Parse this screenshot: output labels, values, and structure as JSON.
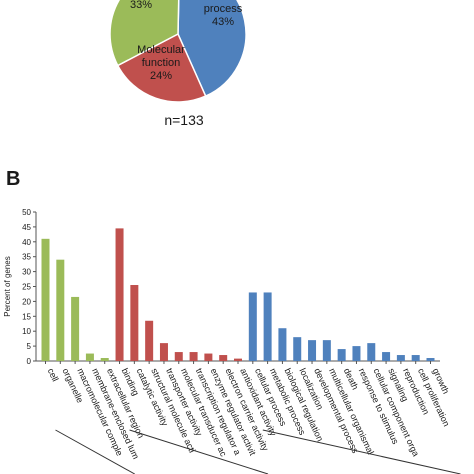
{
  "panels": {
    "b_label": "B"
  },
  "colors": {
    "cellular_component": "#9bbb59",
    "molecular_function": "#c0504d",
    "biological_process": "#4f81bd"
  },
  "pie": {
    "n_label": "n=133",
    "slices": [
      {
        "key": "cellular_component",
        "pct_label": "33%",
        "name_lines": [],
        "value": 33
      },
      {
        "key": "biological_process",
        "pct_label": "43%",
        "name_lines": [
          "process"
        ],
        "value": 43
      },
      {
        "key": "molecular_function",
        "pct_label": "24%",
        "name_lines": [
          "Molecular",
          "function"
        ],
        "value": 24
      }
    ]
  },
  "chart_data": {
    "type": "bar",
    "ylabel": "Percent of genes",
    "ylim": [
      0,
      50
    ],
    "yticks": [
      0,
      5,
      10,
      15,
      20,
      25,
      30,
      35,
      40,
      45,
      50
    ],
    "grid": false,
    "categories": [
      {
        "label": "cell",
        "value": 41,
        "group": "cellular_component"
      },
      {
        "label": "organelle",
        "value": 34,
        "group": "cellular_component"
      },
      {
        "label": "macromolecular comple",
        "value": 21.5,
        "group": "cellular_component"
      },
      {
        "label": "membrane-enclosed lum",
        "value": 2.5,
        "group": "cellular_component"
      },
      {
        "label": "extracellular region",
        "value": 1,
        "group": "cellular_component"
      },
      {
        "label": "binding",
        "value": 44.5,
        "group": "molecular_function"
      },
      {
        "label": "catalytic activity",
        "value": 25.5,
        "group": "molecular_function"
      },
      {
        "label": "structural molecule acti",
        "value": 13.5,
        "group": "molecular_function"
      },
      {
        "label": "transporter activity",
        "value": 6,
        "group": "molecular_function"
      },
      {
        "label": "molecular transducer ac",
        "value": 3,
        "group": "molecular_function"
      },
      {
        "label": "transcription regulator a",
        "value": 3,
        "group": "molecular_function"
      },
      {
        "label": "enzyme regulator activit",
        "value": 2.5,
        "group": "molecular_function"
      },
      {
        "label": "electron carrier activity",
        "value": 2,
        "group": "molecular_function"
      },
      {
        "label": "antioxidant activity",
        "value": 0.8,
        "group": "molecular_function"
      },
      {
        "label": "cellular process",
        "value": 23,
        "group": "biological_process"
      },
      {
        "label": "metabolic process",
        "value": 23,
        "group": "biological_process"
      },
      {
        "label": "biological regulation",
        "value": 11,
        "group": "biological_process"
      },
      {
        "label": "localization",
        "value": 8,
        "group": "biological_process"
      },
      {
        "label": "developmental process",
        "value": 7,
        "group": "biological_process"
      },
      {
        "label": "multicellular organismal",
        "value": 7,
        "group": "biological_process"
      },
      {
        "label": "death",
        "value": 4,
        "group": "biological_process"
      },
      {
        "label": "response to stimulus",
        "value": 5,
        "group": "biological_process"
      },
      {
        "label": "cellular component orga",
        "value": 6,
        "group": "biological_process"
      },
      {
        "label": "signaling",
        "value": 3,
        "group": "biological_process"
      },
      {
        "label": "reproduction",
        "value": 2,
        "group": "biological_process"
      },
      {
        "label": "cell proliferation",
        "value": 2,
        "group": "biological_process"
      },
      {
        "label": "growth",
        "value": 1,
        "group": "biological_process"
      }
    ]
  }
}
